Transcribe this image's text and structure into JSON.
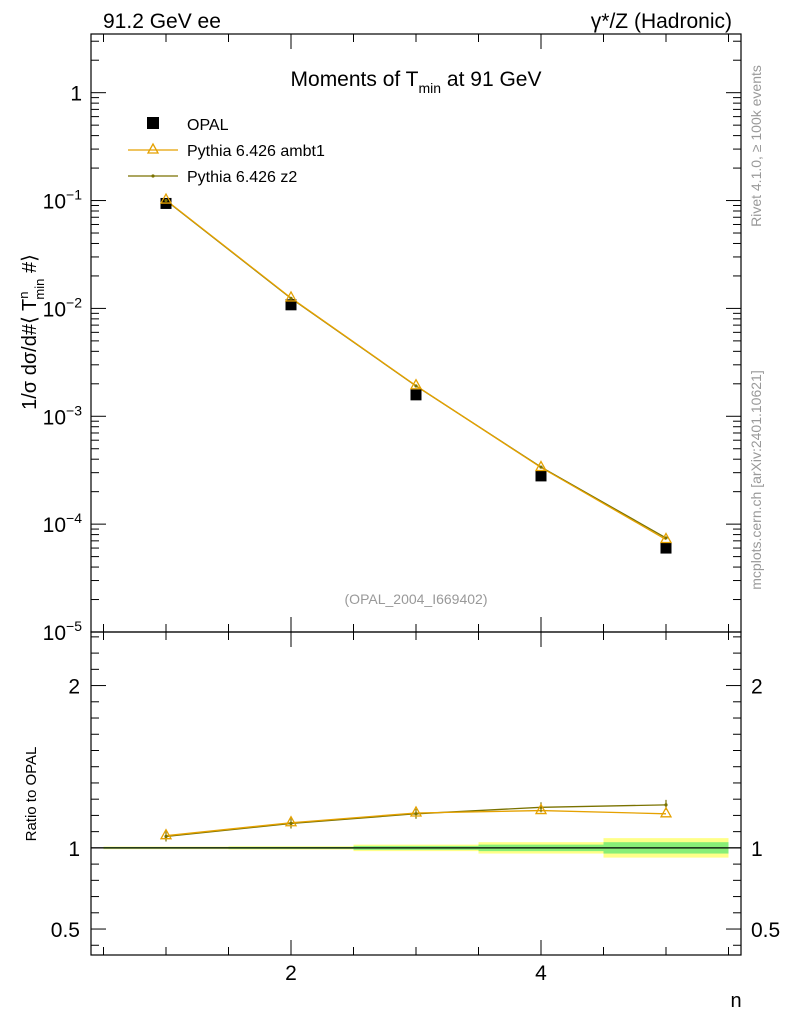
{
  "header": {
    "left": "91.2 GeV ee",
    "right": "γ*/Z (Hadronic)"
  },
  "side_labels": {
    "rivet": "Rivet 4.1.0, ≥ 100k events",
    "mcplots": "mcplots.cern.ch [arXiv:2401.10621]"
  },
  "chart_data": [
    {
      "type": "line",
      "panel": "main",
      "title_main": "Moments of T",
      "title_sub": "min",
      "title_tail": " at 91 GeV",
      "ylabel": "1/σ  dσ/d#⟨ T",
      "ylabel_sup": "n",
      "ylabel_sub": "min",
      "ylabel_tail": " #⟩",
      "yscale": "log",
      "xlim": [
        0.4,
        5.6
      ],
      "ylim": [
        1e-05,
        3.5
      ],
      "yticks": [
        {
          "v": 1,
          "base": "1",
          "exp": ""
        },
        {
          "v": 0.1,
          "base": "10",
          "exp": "−1"
        },
        {
          "v": 0.01,
          "base": "10",
          "exp": "−2"
        },
        {
          "v": 0.001,
          "base": "10",
          "exp": "−3"
        },
        {
          "v": 0.0001,
          "base": "10",
          "exp": "−4"
        },
        {
          "v": 1e-05,
          "base": "10",
          "exp": "−5"
        }
      ],
      "analysis_label": "(OPAL_2004_I669402)",
      "legend_position": "top-left",
      "x": [
        1,
        2,
        3,
        4,
        5
      ],
      "series": [
        {
          "name": "OPAL",
          "color": "#000000",
          "marker": "square",
          "values": [
            0.094,
            0.0108,
            0.00158,
            0.00028,
            6e-05
          ]
        },
        {
          "name": "Pythia 6.426 ambt1",
          "color": "#e5a100",
          "marker": "triangle",
          "values": [
            0.101,
            0.0125,
            0.00192,
            0.000335,
            7.2e-05
          ]
        },
        {
          "name": "Pythia 6.426 z2",
          "color": "#7a7200",
          "marker": "dot",
          "values": [
            0.1,
            0.0124,
            0.00191,
            0.000338,
            7.45e-05
          ]
        }
      ]
    },
    {
      "type": "line",
      "panel": "ratio",
      "ylabel": "Ratio to OPAL",
      "xlabel": "n",
      "xlim": [
        0.4,
        5.6
      ],
      "ylim": [
        0.34,
        2.33
      ],
      "yticks": [
        {
          "v": 0.5,
          "label": "0.5"
        },
        {
          "v": 1,
          "label": "1"
        },
        {
          "v": 2,
          "label": "2"
        }
      ],
      "xticks": [
        {
          "v": 2,
          "label": "2"
        },
        {
          "v": 4,
          "label": "4"
        }
      ],
      "x": [
        1,
        2,
        3,
        4,
        5
      ],
      "reference_band": {
        "inner_color": "#88ee77",
        "outer_color": "#ffff88",
        "inner": [
          0.005,
          0.006,
          0.012,
          0.02,
          0.035
        ],
        "outer": [
          0.008,
          0.01,
          0.02,
          0.035,
          0.06
        ]
      },
      "series": [
        {
          "name": "Pythia 6.426 ambt1",
          "color": "#e5a100",
          "marker": "triangle",
          "values": [
            1.075,
            1.155,
            1.215,
            1.23,
            1.21
          ]
        },
        {
          "name": "Pythia 6.426 z2",
          "color": "#7a7200",
          "marker": "dot",
          "values": [
            1.07,
            1.15,
            1.21,
            1.25,
            1.265
          ]
        }
      ]
    }
  ]
}
